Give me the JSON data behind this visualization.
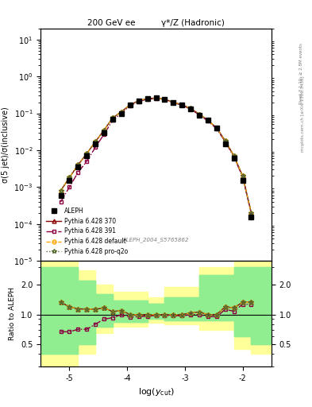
{
  "title_left": "200 GeV ee",
  "title_right": "γ*/Z (Hadronic)",
  "ylabel_main": "σ(5 jet)/σ(inclusive)",
  "ylabel_ratio": "Ratio to ALEPH",
  "xlabel": "log(y_{cut})",
  "watermark": "ALEPH_2004_S5765862",
  "right_label": "Rivet 3.1.10; ≥ 2.8M events",
  "right_label2": "mcplots.cern.ch [arXiv:1306.3436]",
  "xmin": -5.5,
  "xmax": -1.5,
  "aleph_x": [
    -5.15,
    -5.0,
    -4.85,
    -4.7,
    -4.55,
    -4.4,
    -4.25,
    -4.1,
    -3.95,
    -3.8,
    -3.65,
    -3.5,
    -3.35,
    -3.2,
    -3.05,
    -2.9,
    -2.75,
    -2.6,
    -2.45,
    -2.3,
    -2.15,
    -2.0,
    -1.85
  ],
  "aleph_y": [
    0.0006,
    0.0015,
    0.0035,
    0.007,
    0.015,
    0.03,
    0.07,
    0.1,
    0.17,
    0.22,
    0.25,
    0.26,
    0.24,
    0.2,
    0.17,
    0.13,
    0.09,
    0.065,
    0.04,
    0.015,
    0.006,
    0.0015,
    0.00015
  ],
  "py370_x": [
    -5.15,
    -5.0,
    -4.85,
    -4.7,
    -4.55,
    -4.4,
    -4.25,
    -4.1,
    -3.95,
    -3.8,
    -3.65,
    -3.5,
    -3.35,
    -3.2,
    -3.05,
    -2.9,
    -2.75,
    -2.6,
    -2.45,
    -2.3,
    -2.15,
    -2.0,
    -1.85
  ],
  "py370_y": [
    0.0008,
    0.0018,
    0.004,
    0.008,
    0.017,
    0.035,
    0.075,
    0.11,
    0.17,
    0.22,
    0.25,
    0.26,
    0.24,
    0.2,
    0.17,
    0.135,
    0.095,
    0.065,
    0.04,
    0.018,
    0.007,
    0.002,
    0.0002
  ],
  "py391_x": [
    -5.15,
    -5.0,
    -4.85,
    -4.7,
    -4.55,
    -4.4,
    -4.25,
    -4.1,
    -3.95,
    -3.8,
    -3.65,
    -3.5,
    -3.35,
    -3.2,
    -3.05,
    -2.9,
    -2.75,
    -2.6,
    -2.45,
    -2.3,
    -2.15,
    -2.0,
    -1.85
  ],
  "py391_y": [
    0.0004,
    0.001,
    0.0025,
    0.005,
    0.012,
    0.027,
    0.065,
    0.1,
    0.16,
    0.21,
    0.24,
    0.255,
    0.235,
    0.195,
    0.165,
    0.13,
    0.09,
    0.062,
    0.038,
    0.017,
    0.0065,
    0.0019,
    0.00019
  ],
  "pydef_x": [
    -5.15,
    -5.0,
    -4.85,
    -4.7,
    -4.55,
    -4.4,
    -4.25,
    -4.1,
    -3.95,
    -3.8,
    -3.65,
    -3.5,
    -3.35,
    -3.2,
    -3.05,
    -2.9,
    -2.75,
    -2.6,
    -2.45,
    -2.3,
    -2.15,
    -2.0,
    -1.85
  ],
  "pydef_y": [
    0.0008,
    0.0018,
    0.004,
    0.008,
    0.017,
    0.035,
    0.075,
    0.11,
    0.17,
    0.22,
    0.25,
    0.26,
    0.24,
    0.2,
    0.17,
    0.135,
    0.095,
    0.065,
    0.04,
    0.018,
    0.007,
    0.002,
    0.0002
  ],
  "pyq2o_x": [
    -5.15,
    -5.0,
    -4.85,
    -4.7,
    -4.55,
    -4.4,
    -4.25,
    -4.1,
    -3.95,
    -3.8,
    -3.65,
    -3.5,
    -3.35,
    -3.2,
    -3.05,
    -2.9,
    -2.75,
    -2.6,
    -2.45,
    -2.3,
    -2.15,
    -2.0,
    -1.85
  ],
  "pyq2o_y": [
    0.0008,
    0.0018,
    0.004,
    0.008,
    0.017,
    0.035,
    0.075,
    0.11,
    0.17,
    0.22,
    0.25,
    0.26,
    0.24,
    0.2,
    0.17,
    0.135,
    0.095,
    0.065,
    0.04,
    0.018,
    0.007,
    0.002,
    0.0002
  ],
  "ratio370_y": [
    1.33,
    1.2,
    1.14,
    1.14,
    1.13,
    1.17,
    1.07,
    1.1,
    1.0,
    1.0,
    1.0,
    1.0,
    1.0,
    1.0,
    1.0,
    1.04,
    1.06,
    1.0,
    1.0,
    1.2,
    1.17,
    1.33,
    1.33
  ],
  "ratio391_y": [
    0.67,
    0.67,
    0.71,
    0.71,
    0.8,
    0.9,
    0.93,
    1.0,
    0.94,
    0.955,
    0.96,
    0.98,
    0.98,
    0.975,
    0.97,
    1.0,
    1.0,
    0.955,
    0.95,
    1.13,
    1.08,
    1.27,
    1.27
  ],
  "ratiodef_y": [
    1.33,
    1.2,
    1.14,
    1.14,
    1.13,
    1.17,
    1.07,
    1.1,
    1.0,
    1.0,
    1.0,
    1.0,
    1.0,
    1.0,
    1.0,
    1.04,
    1.06,
    1.0,
    1.0,
    1.2,
    1.17,
    1.33,
    1.33
  ],
  "ratioq2o_y": [
    1.33,
    1.2,
    1.14,
    1.14,
    1.13,
    1.17,
    1.07,
    1.1,
    1.0,
    1.0,
    1.0,
    1.0,
    1.0,
    1.0,
    1.0,
    1.04,
    1.06,
    1.0,
    1.0,
    1.2,
    1.17,
    1.33,
    1.33
  ],
  "green_band_x": [
    -5.5,
    -4.85,
    -4.85,
    -4.55,
    -4.55,
    -4.25,
    -4.25,
    -3.65,
    -3.65,
    -3.35,
    -3.35,
    -2.75,
    -2.75,
    -2.15,
    -2.15,
    -1.85,
    -1.85,
    -1.5
  ],
  "green_band_lo": [
    0.4,
    0.4,
    0.5,
    0.5,
    0.75,
    0.75,
    0.85,
    0.85,
    0.9,
    0.9,
    0.88,
    0.88,
    0.88,
    0.88,
    0.6,
    0.6,
    0.5,
    0.5
  ],
  "green_band_hi": [
    3.0,
    3.0,
    2.2,
    2.2,
    1.6,
    1.6,
    1.4,
    1.4,
    1.3,
    1.3,
    1.5,
    1.5,
    2.5,
    2.5,
    3.0,
    3.0,
    3.0,
    3.0
  ],
  "yellow_band_x": [
    -5.5,
    -4.85,
    -4.85,
    -4.55,
    -4.55,
    -4.25,
    -4.25,
    -3.65,
    -3.65,
    -3.35,
    -3.35,
    -2.75,
    -2.75,
    -2.15,
    -2.15,
    -1.85,
    -1.85,
    -1.5
  ],
  "yellow_band_lo": [
    0.3,
    0.3,
    0.4,
    0.4,
    0.65,
    0.65,
    0.75,
    0.75,
    0.82,
    0.82,
    0.8,
    0.8,
    0.7,
    0.7,
    0.45,
    0.45,
    0.4,
    0.4
  ],
  "yellow_band_hi": [
    3.5,
    3.5,
    2.8,
    2.8,
    2.0,
    2.0,
    1.7,
    1.7,
    1.5,
    1.5,
    1.9,
    1.9,
    3.0,
    3.0,
    3.5,
    3.5,
    3.5,
    3.5
  ],
  "color_370": "#8B0000",
  "color_391": "#8B0040",
  "color_def": "#FFA500",
  "color_q2o": "#556B2F",
  "color_aleph": "#000000",
  "color_green": "#90EE90",
  "color_yellow": "#FFFF99",
  "legend_entries": [
    "ALEPH",
    "Pythia 6.428 370",
    "Pythia 6.428 391",
    "Pythia 6.428 default",
    "Pythia 6.428 pro-q2o"
  ]
}
